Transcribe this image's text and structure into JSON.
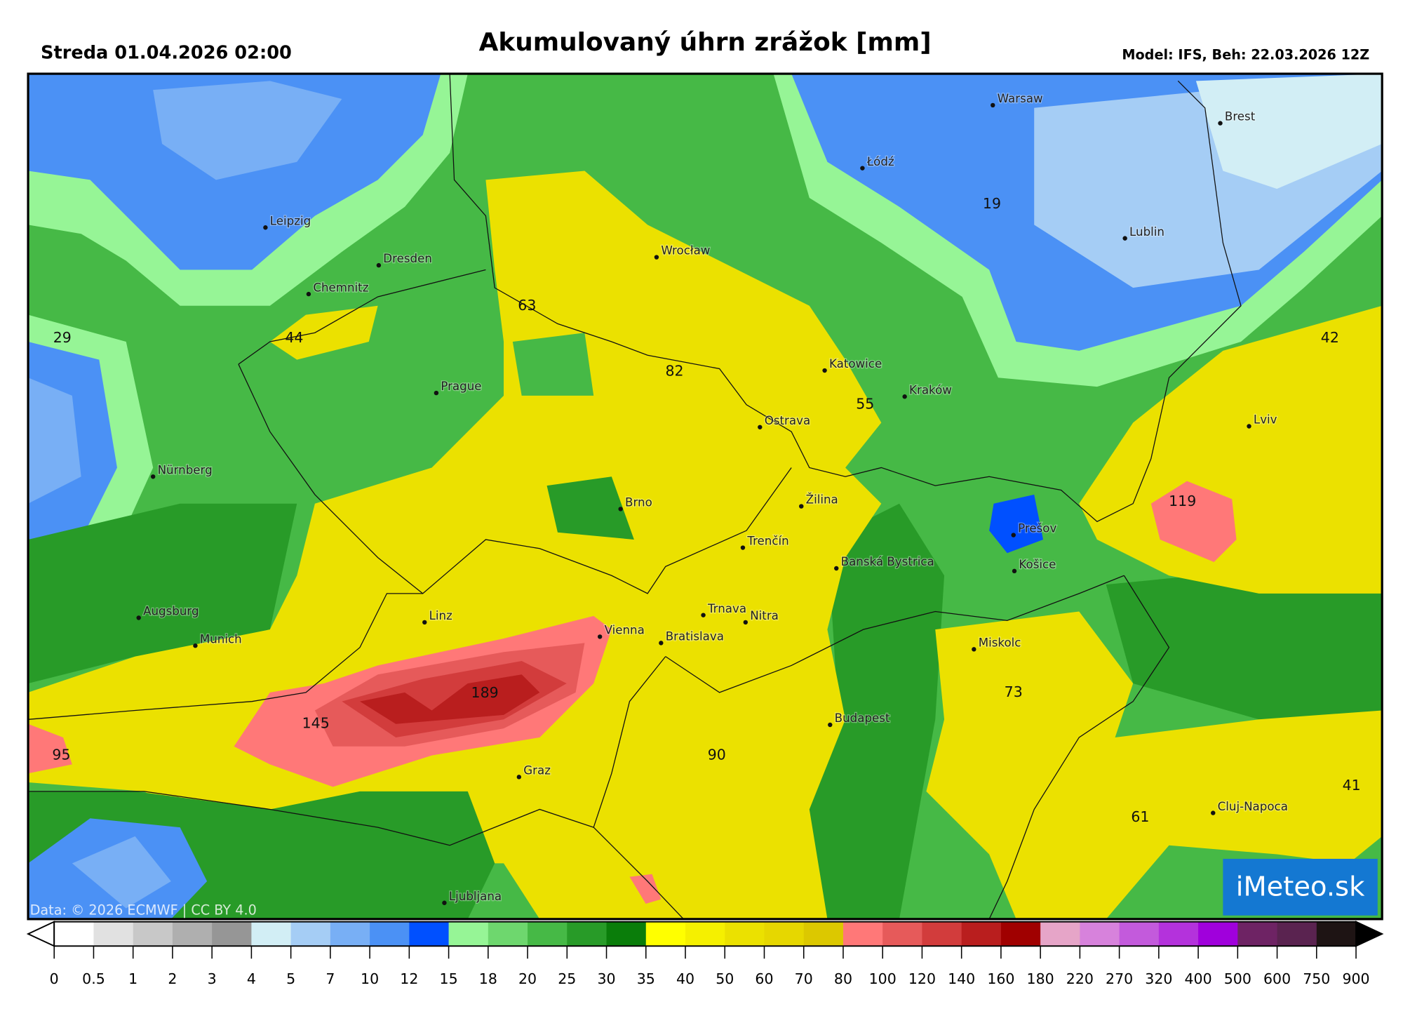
{
  "header": {
    "date": "Streda 01.04.2026 02:00",
    "title": "Akumulovaný úhrn zrážok [mm]",
    "model": "Model: IFS, Beh: 22.03.2026 12Z"
  },
  "cities": [
    "Warsaw",
    "Brest",
    "Łódź",
    "Leipzig",
    "Lublin",
    "Dresden",
    "Wrocław",
    "Chemnitz",
    "Prague",
    "Katowice",
    "Kraków",
    "Ostrava",
    "Lviv",
    "Nürnberg",
    "Žilina",
    "Brno",
    "Prešov",
    "Trenčín",
    "Banská Bystrica",
    "Košice",
    "Augsburg",
    "Linz",
    "Trnava",
    "Nitra",
    "Munich",
    "Vienna",
    "Bratislava",
    "Miskolc",
    "Budapest",
    "Graz",
    "Cluj-Napoca",
    "Ljubljana"
  ],
  "values": [
    19,
    63,
    29,
    44,
    42,
    82,
    55,
    119,
    189,
    73,
    145,
    95,
    90,
    41,
    61
  ],
  "credit": "Data: © 2026 ECMWF | CC BY 4.0",
  "logo": "iMeteo.sk",
  "legend": {
    "ticks": [
      0,
      0.5,
      1,
      2,
      3,
      4,
      5,
      7,
      10,
      12,
      15,
      18,
      20,
      25,
      30,
      35,
      40,
      50,
      60,
      70,
      80,
      100,
      120,
      140,
      160,
      180,
      220,
      270,
      320,
      400,
      500,
      600,
      750,
      900
    ],
    "colors": [
      "#ffffff",
      "#e1e1e1",
      "#c8c8c8",
      "#afafaf",
      "#969696",
      "#d2eef5",
      "#a5cdf5",
      "#78aff5",
      "#4b91f5",
      "#0050ff",
      "#96f596",
      "#6ed76e",
      "#46b946",
      "#289b28",
      "#0a7d0a",
      "#ffff00",
      "#f5f000",
      "#ebe100",
      "#e6d700",
      "#dcc800",
      "#ff7878",
      "#e65a5a",
      "#d23c3c",
      "#b91e1e",
      "#a00000",
      "#e6a5c8",
      "#d782dc",
      "#c35adc",
      "#b432dc",
      "#a000dc",
      "#6e2364",
      "#5a2350",
      "#1e1414"
    ]
  }
}
